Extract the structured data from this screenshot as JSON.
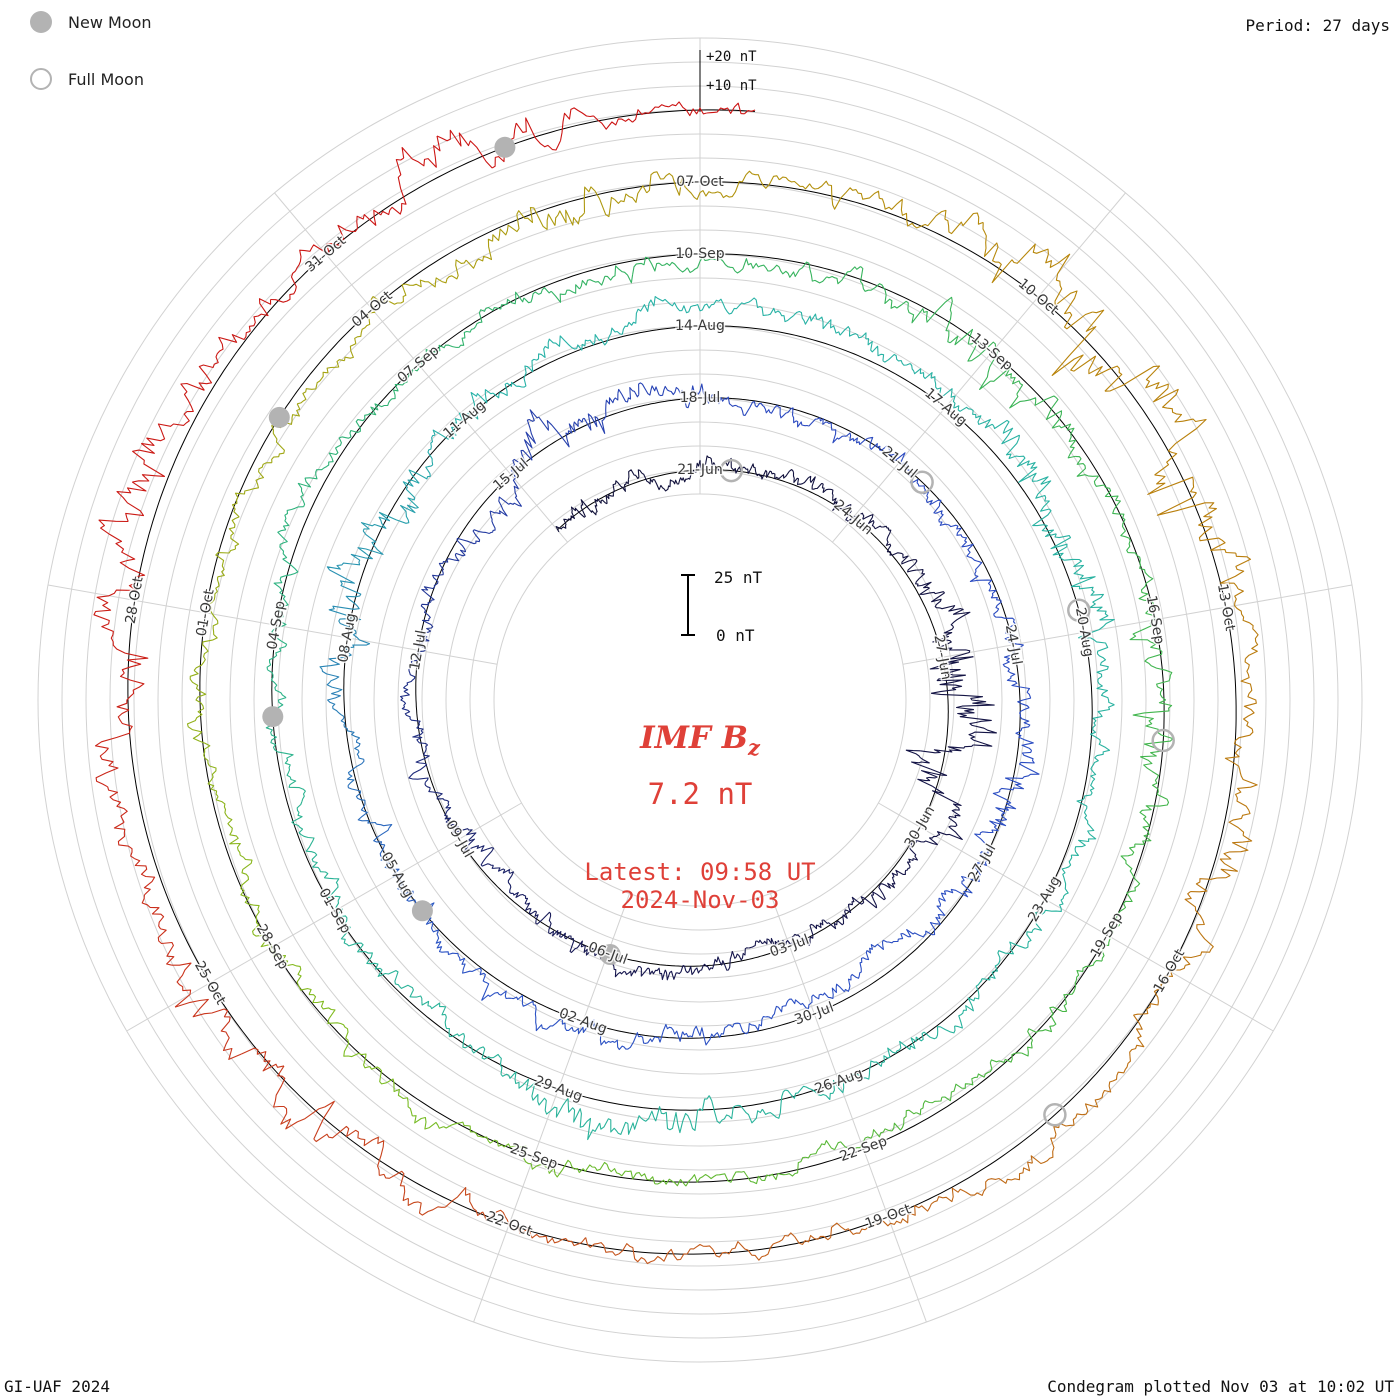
{
  "legend": {
    "new_moon_label": "New Moon",
    "full_moon_label": "Full Moon"
  },
  "header": {
    "period_label": "Period: 27 days"
  },
  "radial_axis": {
    "plus20_label": "+20 nT",
    "plus10_label": "+10 nT"
  },
  "scale_bar": {
    "top_label": "25 nT",
    "bottom_label": "0 nT"
  },
  "center": {
    "title_main": "IMF B",
    "title_sub": "z",
    "value": "7.2 nT",
    "latest_line1": "Latest: 09:58 UT",
    "latest_line2": "2024-Nov-03"
  },
  "footer": {
    "left": "GI-UAF 2024",
    "right": "Condegram plotted Nov 03 at 10:02 UT"
  },
  "colors": {
    "accent_red": "#df4038",
    "moon_gray": "#b3b3b3",
    "grid_gray": "#d2d2d2",
    "baseline_black": "#000000",
    "label_gray": "#3a3a3a"
  },
  "chart_data": {
    "type": "line",
    "layout": "condegram: polar spiral, one turn = 27-day solar rotation, time runs clockwise, radius grows with time",
    "quantity": "IMF Bz",
    "units": "nT",
    "period_days": 27,
    "days_per_radial_gridline": 3,
    "radial_gridline_step_nT": 10,
    "amplitude_reference_nT": 25,
    "latest_value_nT": 7.2,
    "latest_time": "2024-11-03T09:58Z",
    "start_date": "2024-06-18",
    "anchor_top_date": "2024-06-21",
    "end_time": "2024-11-03T09:58Z",
    "ring_dates_at_top": [
      "21-Jun",
      "18-Jul",
      "14-Aug",
      "10-Sep",
      "07-Oct"
    ],
    "date_labels": [
      {
        "date": "2024-06-21",
        "label": "21-Jun"
      },
      {
        "date": "2024-06-24",
        "label": "24-Jun"
      },
      {
        "date": "2024-06-27",
        "label": "27-Jun"
      },
      {
        "date": "2024-06-30",
        "label": "30-Jun"
      },
      {
        "date": "2024-07-03",
        "label": "03-Jul"
      },
      {
        "date": "2024-07-06",
        "label": "06-Jul"
      },
      {
        "date": "2024-07-09",
        "label": "09-Jul"
      },
      {
        "date": "2024-07-12",
        "label": "12-Jul"
      },
      {
        "date": "2024-07-15",
        "label": "15-Jul"
      },
      {
        "date": "2024-07-18",
        "label": "18-Jul"
      },
      {
        "date": "2024-07-21",
        "label": "21-Jul"
      },
      {
        "date": "2024-07-24",
        "label": "24-Jul"
      },
      {
        "date": "2024-07-27",
        "label": "27-Jul"
      },
      {
        "date": "2024-07-30",
        "label": "30-Jul"
      },
      {
        "date": "2024-08-02",
        "label": "02-Aug"
      },
      {
        "date": "2024-08-05",
        "label": "05-Aug"
      },
      {
        "date": "2024-08-08",
        "label": "08-Aug"
      },
      {
        "date": "2024-08-11",
        "label": "11-Aug"
      },
      {
        "date": "2024-08-14",
        "label": "14-Aug"
      },
      {
        "date": "2024-08-17",
        "label": "17-Aug"
      },
      {
        "date": "2024-08-20",
        "label": "20-Aug"
      },
      {
        "date": "2024-08-23",
        "label": "23-Aug"
      },
      {
        "date": "2024-08-26",
        "label": "26-Aug"
      },
      {
        "date": "2024-08-29",
        "label": "29-Aug"
      },
      {
        "date": "2024-09-01",
        "label": "01-Sep"
      },
      {
        "date": "2024-09-04",
        "label": "04-Sep"
      },
      {
        "date": "2024-09-07",
        "label": "07-Sep"
      },
      {
        "date": "2024-09-10",
        "label": "10-Sep"
      },
      {
        "date": "2024-09-13",
        "label": "13-Sep"
      },
      {
        "date": "2024-09-16",
        "label": "16-Sep"
      },
      {
        "date": "2024-09-19",
        "label": "19-Sep"
      },
      {
        "date": "2024-09-22",
        "label": "22-Sep"
      },
      {
        "date": "2024-09-25",
        "label": "25-Sep"
      },
      {
        "date": "2024-09-28",
        "label": "28-Sep"
      },
      {
        "date": "2024-10-01",
        "label": "01-Oct"
      },
      {
        "date": "2024-10-04",
        "label": "04-Oct"
      },
      {
        "date": "2024-10-07",
        "label": "07-Oct"
      },
      {
        "date": "2024-10-10",
        "label": "10-Oct"
      },
      {
        "date": "2024-10-13",
        "label": "13-Oct"
      },
      {
        "date": "2024-10-16",
        "label": "16-Oct"
      },
      {
        "date": "2024-10-19",
        "label": "19-Oct"
      },
      {
        "date": "2024-10-22",
        "label": "22-Oct"
      },
      {
        "date": "2024-10-25",
        "label": "25-Oct"
      },
      {
        "date": "2024-10-28",
        "label": "28-Oct"
      },
      {
        "date": "2024-10-31",
        "label": "31-Oct"
      }
    ],
    "new_moons": [
      "2024-07-05T23:00Z",
      "2024-08-04T11:00Z",
      "2024-09-03T02:00Z",
      "2024-10-02T19:00Z",
      "2024-11-01T13:00Z"
    ],
    "full_moons": [
      "2024-06-21T14:00Z",
      "2024-07-21T10:00Z",
      "2024-08-19T18:00Z",
      "2024-09-17T03:00Z",
      "2024-10-17T11:00Z"
    ],
    "color_timeline": [
      {
        "date": "2024-06-18",
        "color": "#101038"
      },
      {
        "date": "2024-07-06",
        "color": "#17174f"
      },
      {
        "date": "2024-07-14",
        "color": "#233aa0"
      },
      {
        "date": "2024-07-19",
        "color": "#2b49c0"
      },
      {
        "date": "2024-08-04",
        "color": "#2b52c4"
      },
      {
        "date": "2024-08-11",
        "color": "#28b2a8"
      },
      {
        "date": "2024-09-01",
        "color": "#2ab398"
      },
      {
        "date": "2024-09-09",
        "color": "#34b363"
      },
      {
        "date": "2024-09-20",
        "color": "#46b645"
      },
      {
        "date": "2024-09-27",
        "color": "#7fbc20"
      },
      {
        "date": "2024-10-04",
        "color": "#a9a211"
      },
      {
        "date": "2024-10-10",
        "color": "#b8860b"
      },
      {
        "date": "2024-10-16",
        "color": "#bc7410"
      },
      {
        "date": "2024-10-20",
        "color": "#c35f1b"
      },
      {
        "date": "2024-10-24",
        "color": "#c93c1e"
      },
      {
        "date": "2024-10-28",
        "color": "#cb1b15"
      },
      {
        "date": "2024-11-03",
        "color": "#cc1313"
      }
    ],
    "activity_events": [
      {
        "date": "2024-06-28",
        "boost": 2.6,
        "sigma_days": 1.0
      },
      {
        "date": "2024-07-16",
        "boost": 1.2,
        "sigma_days": 0.8
      },
      {
        "date": "2024-07-26",
        "boost": 1.2,
        "sigma_days": 0.8
      },
      {
        "date": "2024-08-09",
        "boost": 1.8,
        "sigma_days": 0.9
      },
      {
        "date": "2024-08-19",
        "boost": 1.5,
        "sigma_days": 0.9
      },
      {
        "date": "2024-08-28",
        "boost": 1.4,
        "sigma_days": 0.8
      },
      {
        "date": "2024-09-13",
        "boost": 1.5,
        "sigma_days": 0.9
      },
      {
        "date": "2024-09-17",
        "boost": 1.4,
        "sigma_days": 0.8
      },
      {
        "date": "2024-10-06",
        "boost": 1.6,
        "sigma_days": 0.7
      },
      {
        "date": "2024-10-11",
        "boost": 4.2,
        "sigma_days": 1.1
      },
      {
        "date": "2024-10-15",
        "boost": 1.4,
        "sigma_days": 0.6
      },
      {
        "date": "2024-10-24",
        "boost": 1.9,
        "sigma_days": 0.9
      },
      {
        "date": "2024-10-28",
        "boost": 2.2,
        "sigma_days": 1.1
      },
      {
        "date": "2024-11-01",
        "boost": 1.6,
        "sigma_days": 0.9
      }
    ],
    "synthetic_trace": {
      "note": "waveform regenerated as seeded noise; original per-sample values not readable from the plot",
      "seed": 20241103,
      "samples_per_day": 40,
      "base_sigma_nT": 2.0,
      "ar_fast": 0.72,
      "ar_slow": 0.992,
      "slow_gain": 1.9,
      "clamp_nT": [
        -30,
        32
      ]
    }
  }
}
